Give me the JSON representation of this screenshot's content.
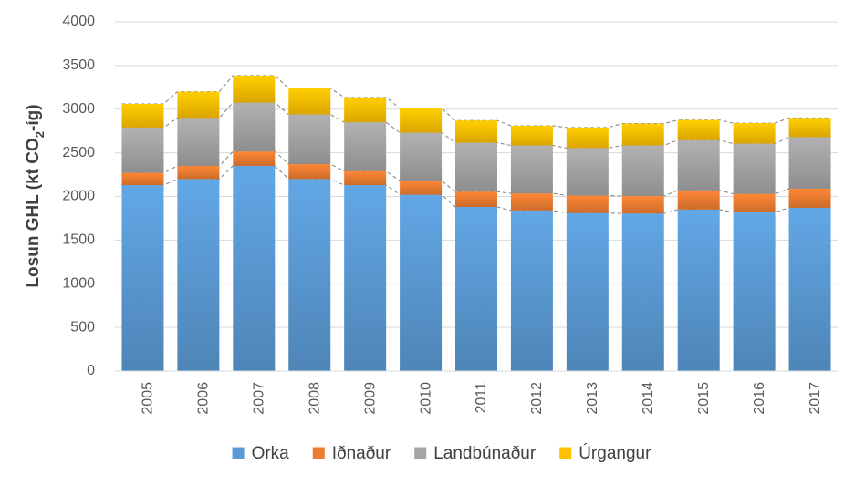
{
  "chart_data": {
    "type": "bar",
    "stacked": true,
    "categories": [
      "2005",
      "2006",
      "2007",
      "2008",
      "2009",
      "2010",
      "2011",
      "2012",
      "2013",
      "2014",
      "2015",
      "2016",
      "2017"
    ],
    "series": [
      {
        "name": "Orka",
        "color": "#5b9bd5",
        "values": [
          2130,
          2200,
          2350,
          2200,
          2130,
          2020,
          1880,
          1840,
          1810,
          1805,
          1850,
          1820,
          1870
        ]
      },
      {
        "name": "Iðnaður",
        "color": "#ed7d31",
        "values": [
          140,
          150,
          165,
          170,
          160,
          160,
          175,
          195,
          200,
          200,
          220,
          210,
          220
        ]
      },
      {
        "name": "Landbúnaður",
        "color": "#a5a5a5",
        "values": [
          520,
          550,
          560,
          570,
          560,
          550,
          560,
          550,
          545,
          580,
          575,
          575,
          590
        ]
      },
      {
        "name": "Úrgangur",
        "color": "#ffc000",
        "values": [
          270,
          300,
          310,
          300,
          285,
          280,
          255,
          225,
          235,
          250,
          230,
          235,
          220
        ]
      }
    ],
    "ylabel": {
      "main": "Losun GHL (kt CO",
      "subscript": "2",
      "suffix": "-íg)"
    },
    "xlabel": "",
    "ylim": [
      0,
      4000
    ],
    "yticks": [
      "0",
      "500",
      "1000",
      "1500",
      "2000",
      "2500",
      "3000",
      "3500",
      "4000"
    ],
    "ytick_values": [
      0,
      500,
      1000,
      1500,
      2000,
      2500,
      3000,
      3500,
      4000
    ],
    "grid": true,
    "legend_position": "bottom",
    "series_lines": "dashed"
  }
}
